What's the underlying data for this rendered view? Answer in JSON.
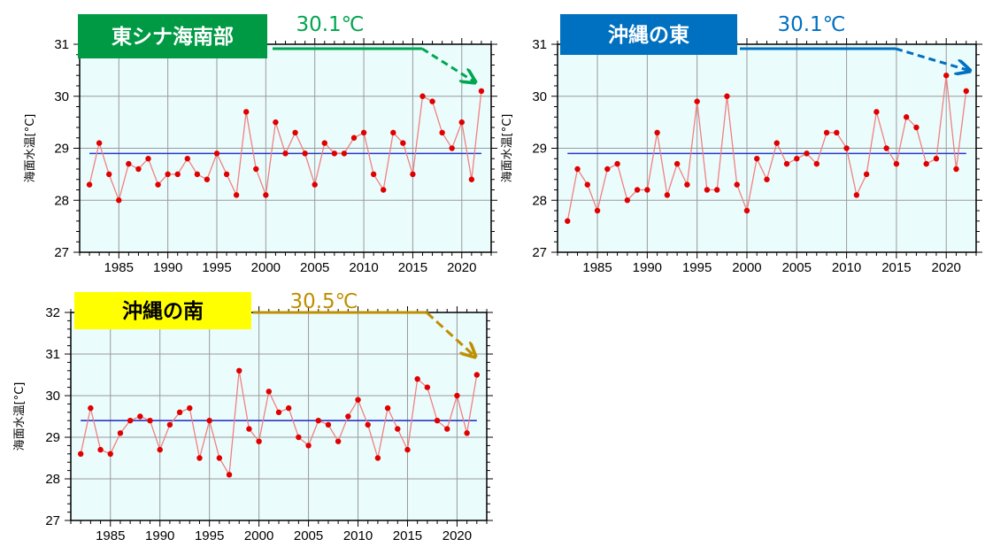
{
  "chart_data": [
    {
      "type": "line",
      "title": "東シナ海南部",
      "title_bg": "#009a44",
      "title_color": "#ffffff",
      "accent": "#00a650",
      "annotation": "30.1℃",
      "ylabel": "海面水温[°C]",
      "xlim": [
        1981,
        2023
      ],
      "ylim": [
        27,
        31
      ],
      "xticks": [
        1985,
        1990,
        1995,
        2000,
        2005,
        2010,
        2015,
        2020
      ],
      "yticks": [
        27,
        28,
        29,
        30,
        31
      ],
      "baseline": 28.9,
      "x": [
        1982,
        1983,
        1984,
        1985,
        1986,
        1987,
        1988,
        1989,
        1990,
        1991,
        1992,
        1993,
        1994,
        1995,
        1996,
        1997,
        1998,
        1999,
        2000,
        2001,
        2002,
        2003,
        2004,
        2005,
        2006,
        2007,
        2008,
        2009,
        2010,
        2011,
        2012,
        2013,
        2014,
        2015,
        2016,
        2017,
        2018,
        2019,
        2020,
        2021,
        2022
      ],
      "values": [
        28.3,
        29.1,
        28.5,
        28.0,
        28.7,
        28.6,
        28.8,
        28.3,
        28.5,
        28.5,
        28.8,
        28.5,
        28.4,
        28.9,
        28.5,
        28.1,
        29.7,
        28.6,
        28.1,
        29.5,
        28.9,
        29.3,
        28.9,
        28.3,
        29.1,
        28.9,
        28.9,
        29.2,
        29.3,
        28.5,
        28.2,
        29.3,
        29.1,
        28.5,
        30.0,
        29.9,
        29.3,
        29.0,
        29.5,
        28.4,
        30.1
      ],
      "grid": true
    },
    {
      "type": "line",
      "title": "沖縄の東",
      "title_bg": "#0070c0",
      "title_color": "#ffffff",
      "accent": "#0070c0",
      "annotation": "30.1℃",
      "ylabel": "海面水温[°C]",
      "xlim": [
        1981,
        2023
      ],
      "ylim": [
        27,
        31
      ],
      "xticks": [
        1985,
        1990,
        1995,
        2000,
        2005,
        2010,
        2015,
        2020
      ],
      "yticks": [
        27,
        28,
        29,
        30,
        31
      ],
      "baseline": 28.9,
      "x": [
        1982,
        1983,
        1984,
        1985,
        1986,
        1987,
        1988,
        1989,
        1990,
        1991,
        1992,
        1993,
        1994,
        1995,
        1996,
        1997,
        1998,
        1999,
        2000,
        2001,
        2002,
        2003,
        2004,
        2005,
        2006,
        2007,
        2008,
        2009,
        2010,
        2011,
        2012,
        2013,
        2014,
        2015,
        2016,
        2017,
        2018,
        2019,
        2020,
        2021,
        2022
      ],
      "values": [
        27.6,
        28.6,
        28.3,
        27.8,
        28.6,
        28.7,
        28.0,
        28.2,
        28.2,
        29.3,
        28.1,
        28.7,
        28.3,
        29.9,
        28.2,
        28.2,
        30.0,
        28.3,
        27.8,
        28.8,
        28.4,
        29.1,
        28.7,
        28.8,
        28.9,
        28.7,
        29.3,
        29.3,
        29.0,
        28.1,
        28.5,
        29.7,
        29.0,
        28.7,
        29.6,
        29.4,
        28.7,
        28.8,
        30.4,
        28.6,
        30.1
      ],
      "grid": true
    },
    {
      "type": "line",
      "title": "沖縄の南",
      "title_bg": "#ffff00",
      "title_color": "#000000",
      "accent": "#bf8f00",
      "annotation": "30.5℃",
      "ylabel": "海面水温[°C]",
      "xlim": [
        1981,
        2023
      ],
      "ylim": [
        27,
        32
      ],
      "xticks": [
        1985,
        1990,
        1995,
        2000,
        2005,
        2010,
        2015,
        2020
      ],
      "yticks": [
        27,
        28,
        29,
        30,
        31,
        32
      ],
      "baseline": 29.4,
      "x": [
        1982,
        1983,
        1984,
        1985,
        1986,
        1987,
        1988,
        1989,
        1990,
        1991,
        1992,
        1993,
        1994,
        1995,
        1996,
        1997,
        1998,
        1999,
        2000,
        2001,
        2002,
        2003,
        2004,
        2005,
        2006,
        2007,
        2008,
        2009,
        2010,
        2011,
        2012,
        2013,
        2014,
        2015,
        2016,
        2017,
        2018,
        2019,
        2020,
        2021,
        2022
      ],
      "values": [
        28.6,
        29.7,
        28.7,
        28.6,
        29.1,
        29.4,
        29.5,
        29.4,
        28.7,
        29.3,
        29.6,
        29.7,
        28.5,
        29.4,
        28.5,
        28.1,
        30.6,
        29.2,
        28.9,
        30.1,
        29.6,
        29.7,
        29.0,
        28.8,
        29.4,
        29.3,
        28.9,
        29.5,
        29.9,
        29.3,
        28.5,
        29.7,
        29.2,
        28.7,
        30.4,
        30.2,
        29.4,
        29.2,
        30.0,
        29.1,
        30.5
      ],
      "grid": true
    }
  ],
  "colors": {
    "plot_bg": "#ebfcfd",
    "grid": "#9a9a9a",
    "series_line": "#f08080",
    "series_point": "#e00000",
    "baseline": "#2b35c8"
  }
}
